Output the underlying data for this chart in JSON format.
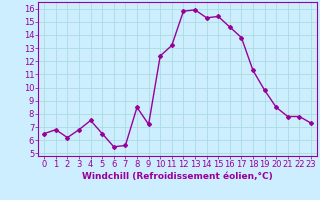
{
  "x": [
    0,
    1,
    2,
    3,
    4,
    5,
    6,
    7,
    8,
    9,
    10,
    11,
    12,
    13,
    14,
    15,
    16,
    17,
    18,
    19,
    20,
    21,
    22,
    23
  ],
  "y": [
    6.5,
    6.8,
    6.2,
    6.8,
    7.5,
    6.5,
    5.5,
    5.6,
    8.5,
    7.2,
    12.4,
    13.2,
    15.8,
    15.9,
    15.3,
    15.4,
    14.6,
    13.8,
    11.3,
    9.8,
    8.5,
    7.8,
    7.8,
    7.3
  ],
  "line_color": "#990099",
  "marker": "D",
  "marker_size": 2.0,
  "bg_color": "#cceeff",
  "grid_color": "#aadddd",
  "xlabel": "Windchill (Refroidissement éolien,°C)",
  "xlim": [
    -0.5,
    23.5
  ],
  "ylim": [
    4.8,
    16.5
  ],
  "yticks": [
    5,
    6,
    7,
    8,
    9,
    10,
    11,
    12,
    13,
    14,
    15,
    16
  ],
  "xticks": [
    0,
    1,
    2,
    3,
    4,
    5,
    6,
    7,
    8,
    9,
    10,
    11,
    12,
    13,
    14,
    15,
    16,
    17,
    18,
    19,
    20,
    21,
    22,
    23
  ],
  "tick_color": "#990099",
  "label_color": "#990099",
  "axis_fontsize": 6.0,
  "xlabel_fontsize": 6.5,
  "linewidth": 1.0
}
